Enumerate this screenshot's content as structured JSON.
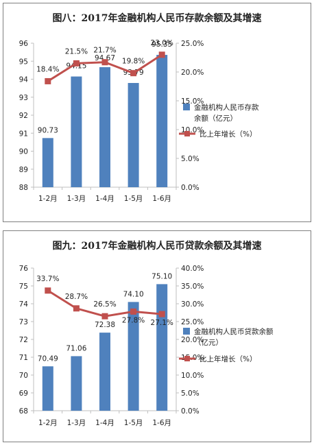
{
  "chart_data": [
    {
      "type": "bar+line",
      "title": "图八：2017年金融机构人民币存款余额及其增速",
      "categories": [
        "1-2月",
        "1-3月",
        "1-4月",
        "1-5月",
        "1-6月"
      ],
      "series": [
        {
          "name": "金融机构人民币存款余额（亿元）",
          "type": "bar",
          "axis": "left",
          "values": [
            90.73,
            94.15,
            94.67,
            93.79,
            95.35
          ],
          "labels": [
            "90.73",
            "94.15",
            "94.67",
            "93.79",
            "95.35"
          ]
        },
        {
          "name": "比上年增长（%）",
          "type": "line",
          "axis": "right",
          "values": [
            18.4,
            21.5,
            21.7,
            19.8,
            23.0
          ],
          "labels": [
            "18.4%",
            "21.5%",
            "21.7%",
            "19.8%",
            "23.0%"
          ]
        }
      ],
      "left_axis": {
        "min": 88,
        "max": 96,
        "step": 1
      },
      "right_axis": {
        "min": 0,
        "max": 25,
        "step": 5,
        "format": "percent1"
      },
      "legend": {
        "position": "right",
        "bar_label_lines": [
          "金融机构人民币存款",
          "余额（亿元）"
        ],
        "line_label": "比上年增长（%）"
      },
      "grid": false,
      "colors": {
        "bar": "#4f81bd",
        "line": "#c0504d"
      }
    },
    {
      "type": "bar+line",
      "title": "图九：2017年金融机构人民币贷款余额及其增速",
      "categories": [
        "1-2月",
        "1-3月",
        "1-4月",
        "1-5月",
        "1-6月"
      ],
      "series": [
        {
          "name": "金融机构人民币贷款余额（亿元）",
          "type": "bar",
          "axis": "left",
          "values": [
            70.49,
            71.06,
            72.38,
            74.1,
            75.1
          ],
          "labels": [
            "70.49",
            "71.06",
            "72.38",
            "74.10",
            "75.10"
          ]
        },
        {
          "name": "比上年增长（%）",
          "type": "line",
          "axis": "right",
          "values": [
            33.7,
            28.7,
            26.5,
            27.8,
            27.1
          ],
          "labels": [
            "33.7%",
            "28.7%",
            "26.5%",
            "27.8%",
            "27.1%"
          ]
        }
      ],
      "left_axis": {
        "min": 68,
        "max": 76,
        "step": 1
      },
      "right_axis": {
        "min": 0,
        "max": 40,
        "step": 5,
        "format": "percent1"
      },
      "legend": {
        "position": "right",
        "bar_label_lines": [
          "金融机构人民币贷款余额",
          "（亿元）"
        ],
        "line_label": "比上年增长（%）"
      },
      "grid": false,
      "colors": {
        "bar": "#4f81bd",
        "line": "#c0504d"
      }
    }
  ]
}
